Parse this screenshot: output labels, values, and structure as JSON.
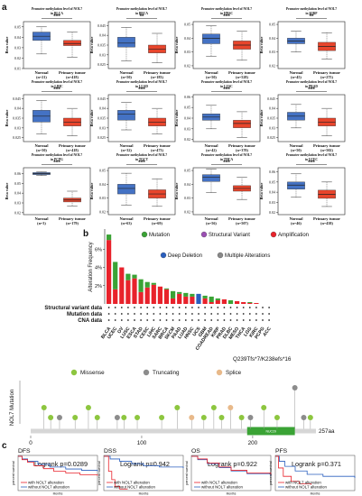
{
  "panels": {
    "a": "a",
    "b": "b",
    "c": "c"
  },
  "boxplots": {
    "normal_label": "Normal",
    "tumor_label": "Primary tumor",
    "ylabel": "Beta value",
    "normal_color": "#4472c4",
    "tumor_color": "#e8452c",
    "items": [
      {
        "title": "Promoter methylation level of NOL7",
        "title2": "in BLCA",
        "sig": "***",
        "normal_n": "(n=21)",
        "tumor_n": "(n=418)",
        "ticks": [
          "0.05",
          "0.04",
          "0.03",
          "0.02",
          "0.01"
        ],
        "ylim": [
          0.01,
          0.055
        ],
        "normal_box": [
          0.024,
          0.037,
          0.041,
          0.045,
          0.05
        ],
        "tumor_box": [
          0.021,
          0.032,
          0.034,
          0.037,
          0.045
        ]
      },
      {
        "title": "Promoter methylation level of NOL7",
        "title2": "in BRCA",
        "sig": "**",
        "normal_n": "(n=50)",
        "tumor_n": "(n=183)",
        "ticks": [
          "0.045",
          "0.04",
          "0.035",
          "0.03",
          "0.025"
        ],
        "ylim": [
          0.023,
          0.047
        ],
        "normal_box": [
          0.027,
          0.034,
          0.036,
          0.039,
          0.044
        ],
        "tumor_box": [
          0.026,
          0.031,
          0.033,
          0.035,
          0.041
        ]
      },
      {
        "title": "Promoter methylation level of NOL7",
        "title2": "in HNSC",
        "sig": "***",
        "normal_n": "(n=50)",
        "tumor_n": "(n=528)",
        "ticks": [
          "0.05",
          "0.04",
          "0.03",
          "0.02"
        ],
        "ylim": [
          0.018,
          0.052
        ],
        "normal_box": [
          0.027,
          0.036,
          0.04,
          0.043,
          0.049
        ],
        "tumor_box": [
          0.024,
          0.032,
          0.035,
          0.038,
          0.045
        ]
      },
      {
        "title": "Promoter methylation level of NOL7",
        "title2": "in KIRP",
        "sig": "**",
        "normal_n": "(n=45)",
        "tumor_n": "(n=275)",
        "ticks": [
          "0.05",
          "0.04",
          "0.03",
          "0.02"
        ],
        "ylim": [
          0.018,
          0.052
        ],
        "normal_box": [
          0.03,
          0.036,
          0.038,
          0.04,
          0.045
        ],
        "tumor_box": [
          0.025,
          0.031,
          0.034,
          0.037,
          0.044
        ]
      },
      {
        "title": "Promoter methylation level of NOL7",
        "title2": "in LIHC",
        "sig": "***",
        "normal_n": "(n=50)",
        "tumor_n": "(n=418)",
        "ticks": [
          "0.045",
          "0.04",
          "0.035",
          "0.03",
          "0.025"
        ],
        "ylim": [
          0.023,
          0.047
        ],
        "normal_box": [
          0.027,
          0.033,
          0.036,
          0.039,
          0.044
        ],
        "tumor_box": [
          0.026,
          0.031,
          0.033,
          0.035,
          0.04
        ]
      },
      {
        "title": "Promoter methylation level of NOL7",
        "title2": "in LUAD",
        "sig": "***",
        "normal_n": "(n=32)",
        "tumor_n": "(n=473)",
        "ticks": [
          "0.045",
          "0.04",
          "0.035",
          "0.03",
          "0.025"
        ],
        "ylim": [
          0.023,
          0.047
        ],
        "normal_box": [
          0.029,
          0.034,
          0.037,
          0.039,
          0.043
        ],
        "tumor_box": [
          0.027,
          0.031,
          0.033,
          0.035,
          0.04
        ]
      },
      {
        "title": "Promoter methylation level of NOL7",
        "title2": "in LUSC",
        "sig": "***",
        "normal_n": "(n=42)",
        "tumor_n": "(n=370)",
        "ticks": [
          "0.06",
          "0.05",
          "0.04",
          "0.03",
          "0.02"
        ],
        "ylim": [
          0.018,
          0.062
        ],
        "normal_box": [
          0.03,
          0.038,
          0.041,
          0.044,
          0.052
        ],
        "tumor_box": [
          0.022,
          0.031,
          0.035,
          0.038,
          0.046
        ]
      },
      {
        "title": "Promoter methylation level of NOL7",
        "title2": "in PRAD",
        "sig": "***",
        "normal_n": "(n=50)",
        "tumor_n": "(n=502)",
        "ticks": [
          "0.045",
          "0.04",
          "0.035",
          "0.03",
          "0.025"
        ],
        "ylim": [
          0.023,
          0.047
        ],
        "normal_box": [
          0.03,
          0.034,
          0.036,
          0.038,
          0.042
        ],
        "tumor_box": [
          0.026,
          0.031,
          0.033,
          0.035,
          0.04
        ]
      },
      {
        "title": "Promoter methylation level of NOL7",
        "title2": "in PCPG",
        "sig": "***",
        "normal_n": "(n=3)",
        "tumor_n": "(n=179)",
        "ticks": [
          "0.06",
          "0.05",
          "0.04",
          "0.03",
          "0.02"
        ],
        "ylim": [
          0.018,
          0.066
        ],
        "normal_box": [
          0.058,
          0.059,
          0.06,
          0.061,
          0.062
        ],
        "tumor_box": [
          0.027,
          0.031,
          0.033,
          0.035,
          0.042
        ]
      },
      {
        "title": "Promoter methylation level of NOL7",
        "title2": "in TGCT",
        "sig": "***",
        "normal_n": "(n=63)",
        "tumor_n": "(n=69)",
        "ticks": [
          "0.05",
          "0.04",
          "0.03",
          "0.02"
        ],
        "ylim": [
          0.018,
          0.052
        ],
        "normal_box": [
          0.025,
          0.033,
          0.037,
          0.04,
          0.048
        ],
        "tumor_box": [
          0.024,
          0.03,
          0.033,
          0.036,
          0.044
        ]
      },
      {
        "title": "Promoter methylation level of NOL7",
        "title2": "in THCA",
        "sig": "***",
        "normal_n": "(n=56)",
        "tumor_n": "(n=507)",
        "ticks": [
          "0.05",
          "0.04",
          "0.03",
          "0.02"
        ],
        "ylim": [
          0.018,
          0.052
        ],
        "normal_box": [
          0.034,
          0.042,
          0.045,
          0.047,
          0.051
        ],
        "tumor_box": [
          0.029,
          0.035,
          0.037,
          0.039,
          0.045
        ]
      },
      {
        "title": "Promoter methylation level of NOL7",
        "title2": "in UCEC",
        "sig": "***",
        "normal_n": "(n=46)",
        "tumor_n": "(n=438)",
        "ticks": [
          "0.06",
          "0.05",
          "0.04",
          "0.03",
          "0.02"
        ],
        "ylim": [
          0.018,
          0.064
        ],
        "normal_box": [
          0.035,
          0.043,
          0.047,
          0.05,
          0.058
        ],
        "tumor_box": [
          0.026,
          0.034,
          0.038,
          0.042,
          0.05
        ]
      }
    ]
  },
  "alteration": {
    "ylabel": "Alteration Frequency",
    "ticks": [
      "6%",
      "4%",
      "2%"
    ],
    "legend": [
      {
        "label": "Mutation",
        "color": "#3aa335"
      },
      {
        "label": "Structural Variant",
        "color": "#9b4fb3"
      },
      {
        "label": "Amplification",
        "color": "#e8222b"
      },
      {
        "label": "Deep Deletion",
        "color": "#2a5fbf"
      },
      {
        "label": "Multiple Alterations",
        "color": "#888888"
      }
    ],
    "rows": [
      "Structural variant data",
      "Mutation data",
      "CNA data"
    ],
    "bars": [
      {
        "label": "BLCA",
        "amp": 7.0,
        "mut": 0.6,
        "del": 0.0,
        "multi": 0.0
      },
      {
        "label": "UCEC",
        "amp": 1.6,
        "mut": 3.0,
        "del": 0.0,
        "multi": 0.0
      },
      {
        "label": "OV",
        "amp": 4.0,
        "mut": 0.0,
        "del": 0.0,
        "multi": 0.0
      },
      {
        "label": "LUSC",
        "amp": 2.6,
        "mut": 0.7,
        "del": 0.0,
        "multi": 0.0
      },
      {
        "label": "ESCA",
        "amp": 2.8,
        "mut": 0.4,
        "del": 0.0,
        "multi": 0.0
      },
      {
        "label": "STAD",
        "amp": 1.3,
        "mut": 1.4,
        "del": 0.0,
        "multi": 0.0
      },
      {
        "label": "CESC",
        "amp": 1.8,
        "mut": 0.6,
        "del": 0.0,
        "multi": 0.0
      },
      {
        "label": "LIHC",
        "amp": 2.1,
        "mut": 0.2,
        "del": 0.0,
        "multi": 0.0
      },
      {
        "label": "SARC",
        "amp": 1.9,
        "mut": 0.0,
        "del": 0.0,
        "multi": 0.0
      },
      {
        "label": "BRCA",
        "amp": 1.6,
        "mut": 0.1,
        "del": 0.0,
        "multi": 0.0
      },
      {
        "label": "SKCM",
        "amp": 0.6,
        "mut": 0.8,
        "del": 0.0,
        "multi": 0.0
      },
      {
        "label": "PAAD",
        "amp": 1.1,
        "mut": 0.2,
        "del": 0.0,
        "multi": 0.0
      },
      {
        "label": "LUAD",
        "amp": 0.8,
        "mut": 0.4,
        "del": 0.0,
        "multi": 0.0
      },
      {
        "label": "HNSC",
        "amp": 0.8,
        "mut": 0.3,
        "del": 0.0,
        "multi": 0.0
      },
      {
        "label": "UCS",
        "amp": 0.0,
        "mut": 0.0,
        "del": 1.1,
        "multi": 0.0
      },
      {
        "label": "GBM",
        "amp": 0.6,
        "mut": 0.3,
        "del": 0.0,
        "multi": 0.0
      },
      {
        "label": "COADREAD",
        "amp": 0.2,
        "mut": 0.6,
        "del": 0.0,
        "multi": 0.0
      },
      {
        "label": "KIRP",
        "amp": 0.4,
        "mut": 0.2,
        "del": 0.0,
        "multi": 0.0
      },
      {
        "label": "PRAD",
        "amp": 0.5,
        "mut": 0.0,
        "del": 0.0,
        "multi": 0.0
      },
      {
        "label": "DLBC",
        "amp": 0.0,
        "mut": 0.4,
        "del": 0.0,
        "multi": 0.0
      },
      {
        "label": "MESO",
        "amp": 0.3,
        "mut": 0.0,
        "del": 0.0,
        "multi": 0.0
      },
      {
        "label": "THCA",
        "amp": 0.2,
        "mut": 0.0,
        "del": 0.0,
        "multi": 0.0
      },
      {
        "label": "LGG",
        "amp": 0.1,
        "mut": 0.1,
        "del": 0.0,
        "multi": 0.0
      },
      {
        "label": "KIRC",
        "amp": 0.1,
        "mut": 0.0,
        "del": 0.0,
        "multi": 0.0
      },
      {
        "label": "PCPG",
        "amp": 0.0,
        "mut": 0.0,
        "del": 0.0,
        "multi": 0.0
      },
      {
        "label": "ACC",
        "amp": 0.0,
        "mut": 0.0,
        "del": 0.0,
        "multi": 0.0
      }
    ]
  },
  "lollipop": {
    "ylabel": "NOL7 Mutation",
    "legend": [
      {
        "label": "Missense",
        "color": "#8dc63f"
      },
      {
        "label": "Truncating",
        "color": "#8c8c8c"
      },
      {
        "label": "Splice",
        "color": "#e8b98a"
      }
    ],
    "annotation": "Q239Tfs*7/K238efs*16",
    "domain_label": "NUC29",
    "domain_color": "#3aa335",
    "length_label": "257aa",
    "length": 257,
    "ticks": [
      0,
      100,
      200
    ],
    "tick_labels": [
      "0",
      "100",
      "200"
    ],
    "domain_range": [
      195,
      238
    ],
    "mutations": [
      {
        "pos": 12,
        "h": 2,
        "type": "Missense"
      },
      {
        "pos": 18,
        "h": 1,
        "type": "Missense"
      },
      {
        "pos": 26,
        "h": 1,
        "type": "Truncating"
      },
      {
        "pos": 40,
        "h": 1,
        "type": "Missense"
      },
      {
        "pos": 52,
        "h": 2,
        "type": "Missense"
      },
      {
        "pos": 60,
        "h": 1,
        "type": "Missense"
      },
      {
        "pos": 78,
        "h": 1,
        "type": "Truncating"
      },
      {
        "pos": 84,
        "h": 1,
        "type": "Missense"
      },
      {
        "pos": 96,
        "h": 1,
        "type": "Missense"
      },
      {
        "pos": 118,
        "h": 1,
        "type": "Missense"
      },
      {
        "pos": 132,
        "h": 2,
        "type": "Missense"
      },
      {
        "pos": 145,
        "h": 1,
        "type": "Splice"
      },
      {
        "pos": 156,
        "h": 1,
        "type": "Missense"
      },
      {
        "pos": 165,
        "h": 2,
        "type": "Missense"
      },
      {
        "pos": 172,
        "h": 1,
        "type": "Missense"
      },
      {
        "pos": 180,
        "h": 2,
        "type": "Splice"
      },
      {
        "pos": 190,
        "h": 1,
        "type": "Missense"
      },
      {
        "pos": 198,
        "h": 1,
        "type": "Truncating"
      },
      {
        "pos": 210,
        "h": 2,
        "type": "Missense"
      },
      {
        "pos": 222,
        "h": 1,
        "type": "Missense"
      },
      {
        "pos": 238,
        "h": 4,
        "type": "Truncating"
      },
      {
        "pos": 246,
        "h": 1,
        "type": "Truncating"
      },
      {
        "pos": 252,
        "h": 1,
        "type": "Missense"
      }
    ]
  },
  "km": {
    "ylabel": "percent survival",
    "xlabel": "Months",
    "with_label": "with NOL7 alteration",
    "without_label": "without NOL7 alteration",
    "with_color": "#e8222b",
    "without_color": "#2a5fbf",
    "panels": [
      {
        "title": "DFS",
        "logrank": "Logrank p=0.0289"
      },
      {
        "title": "DSS",
        "logrank": "Logrank p=0.942"
      },
      {
        "title": "OS",
        "logrank": "Logrank p=0.922"
      },
      {
        "title": "PFS",
        "logrank": "Logrank p=0.371"
      }
    ]
  }
}
